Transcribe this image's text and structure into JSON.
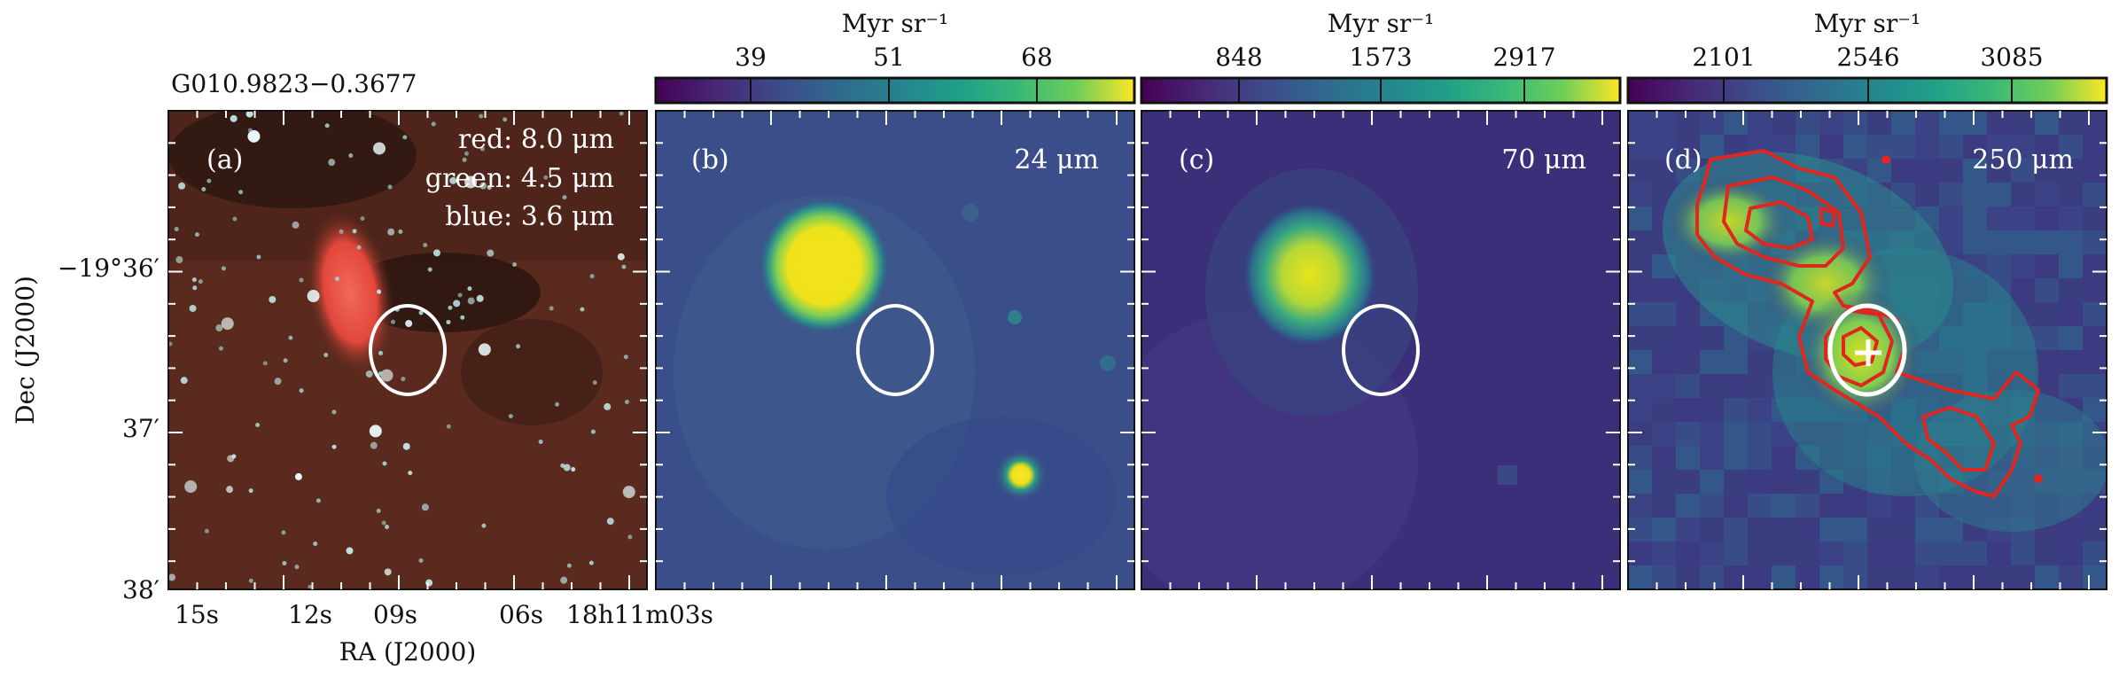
{
  "source_label": "G010.9823−0.3677",
  "axes": {
    "ylabel": "Dec (J2000)",
    "xlabel": "RA (J2000)",
    "y_ticks": [
      "−19°36′",
      "37′",
      "38′"
    ],
    "x_ticks": [
      "15s",
      "12s",
      "09s",
      "06s",
      "18h11m03s"
    ]
  },
  "panels": [
    {
      "tag": "(a)",
      "legend": [
        "red: 8.0 μm",
        "green: 4.5 μm",
        "blue: 3.6 μm"
      ],
      "colors": {
        "background": "#5a2a1e",
        "nebula": "#e2473b",
        "dark_cloud": "#24140f"
      }
    },
    {
      "tag": "(b)",
      "band": "24 μm",
      "colorbar": {
        "unit": "Myr sr⁻¹",
        "ticks": [
          "39",
          "51",
          "68"
        ]
      },
      "colors": {
        "background": "#3a4f8a",
        "source": "#f2e31b"
      }
    },
    {
      "tag": "(c)",
      "band": "70 μm",
      "colorbar": {
        "unit": "Myr sr⁻¹",
        "ticks": [
          "848",
          "1573",
          "2917"
        ]
      },
      "colors": {
        "background": "#3c2f79",
        "source": "#e7e219"
      }
    },
    {
      "tag": "(d)",
      "band": "250 μm",
      "colorbar": {
        "unit": "Myr sr⁻¹",
        "ticks": [
          "2101",
          "2546",
          "3085"
        ]
      },
      "colors": {
        "background": "#3d3a80",
        "peak": "#eae51a",
        "contour": "#e0271f"
      }
    }
  ],
  "marker_ellipse_color": "#ffffff"
}
